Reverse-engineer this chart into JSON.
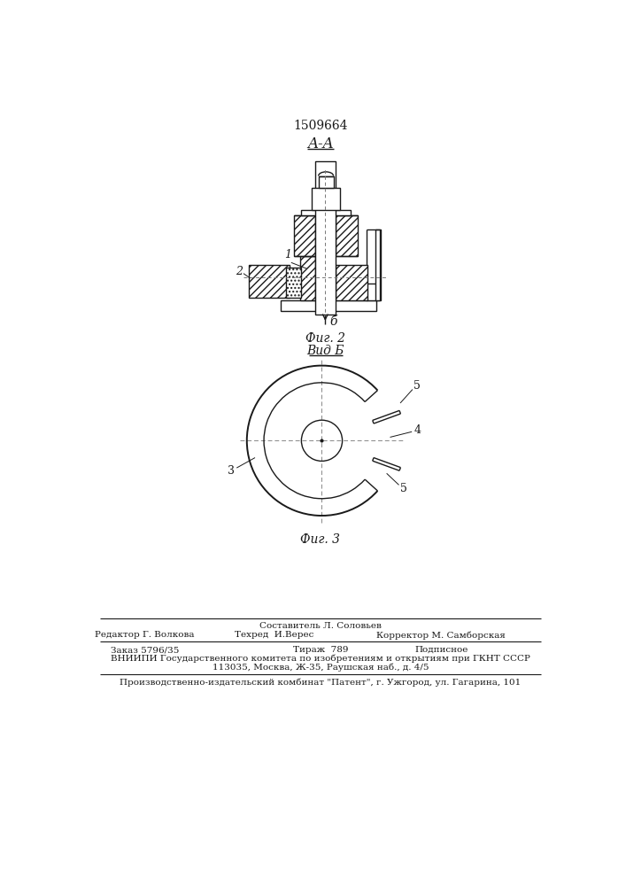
{
  "patent_number": "1509664",
  "fig2_label": "A-A",
  "fig2_caption": "Фиг. 2",
  "fig2_view_label": "Вид Б",
  "fig3_caption": "Фиг. 3",
  "arrow_b_label": "б",
  "bg_color": "#ffffff",
  "line_color": "#1a1a1a",
  "footer_line1_center": "Составитель Л. Соловьев",
  "footer_line2_left": "Редактор Г. Волкова",
  "footer_line2_center": "Техред  И.Верес",
  "footer_line2_right": "Корректор М. Самборская",
  "footer_line3_left": "Заказ 5796/35",
  "footer_line3_center": "Тираж  789",
  "footer_line3_right": "Подписное",
  "footer_line4": "ВНИИПИ Государственного комитета по изобретениям и открытиям при ГКНТ СССР",
  "footer_line5": "113035, Москва, Ж-35, Раушская наб., д. 4/5",
  "footer_line6": "Производственно-издательский комбинат \"Патент\", г. Ужгород, ул. Гагарина, 101"
}
